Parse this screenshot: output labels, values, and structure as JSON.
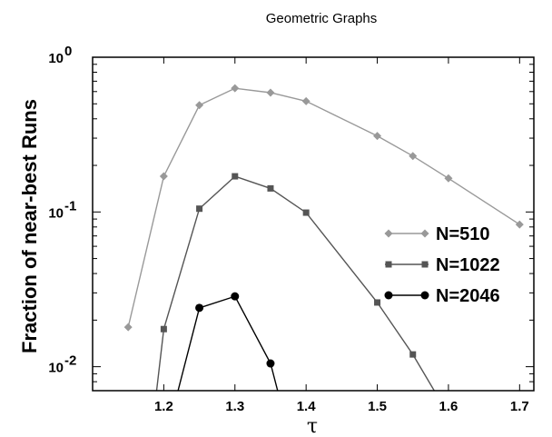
{
  "chart_data": {
    "type": "line",
    "title": "Geometric Graphs",
    "xlabel": "τ",
    "ylabel": "Fraction of near-best Runs",
    "y_scale": "log",
    "xlim": [
      1.1,
      1.72
    ],
    "ylim": [
      0.007,
      1.0
    ],
    "x_ticks": [
      {
        "value": 1.2,
        "label": "1.2"
      },
      {
        "value": 1.3,
        "label": "1.3"
      },
      {
        "value": 1.4,
        "label": "1.4"
      },
      {
        "value": 1.5,
        "label": "1.5"
      },
      {
        "value": 1.6,
        "label": "1.6"
      },
      {
        "value": 1.7,
        "label": "1.7"
      }
    ],
    "y_ticks": [
      {
        "value": 1.0,
        "base": "10",
        "exp": "0"
      },
      {
        "value": 0.1,
        "base": "10",
        "exp": "-1"
      },
      {
        "value": 0.01,
        "base": "10",
        "exp": "-2"
      }
    ],
    "grid": false,
    "legend_position": "right",
    "series": [
      {
        "name": "N=510",
        "color": "#999999",
        "marker": "diamond",
        "x": [
          1.15,
          1.2,
          1.25,
          1.3,
          1.35,
          1.4,
          1.5,
          1.55,
          1.6,
          1.7
        ],
        "y": [
          0.018,
          0.17,
          0.49,
          0.63,
          0.59,
          0.52,
          0.31,
          0.23,
          0.165,
          0.083
        ]
      },
      {
        "name": "N=1022",
        "color": "#555555",
        "marker": "square",
        "x": [
          1.19,
          1.2,
          1.25,
          1.3,
          1.35,
          1.4,
          1.5,
          1.55,
          1.58
        ],
        "y": [
          0.007,
          0.0175,
          0.105,
          0.17,
          0.142,
          0.099,
          0.026,
          0.012,
          0.007
        ]
      },
      {
        "name": "N=2046",
        "color": "#000000",
        "marker": "circle",
        "x": [
          1.22,
          1.25,
          1.3,
          1.35,
          1.36
        ],
        "y": [
          0.007,
          0.024,
          0.0285,
          0.0105,
          0.007
        ]
      }
    ]
  }
}
